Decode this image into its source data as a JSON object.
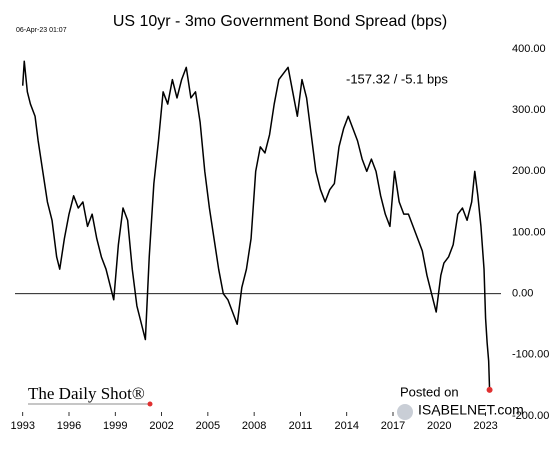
{
  "chart_data": {
    "type": "line",
    "title": "US 10yr - 3mo Government Bond Spread (bps)",
    "timestamp": "06-Apr-23 01:07",
    "annotation": "-157.32  /  -5.1 bps",
    "source": "The Daily Shot®",
    "watermark_top": "Posted on",
    "watermark_bottom": "ISABELNET.com",
    "color": "#000000",
    "end_marker_color": "#e03030",
    "grid": false,
    "xlim": [
      1992.5,
      2024
    ],
    "xticks": [
      1993,
      1996,
      1999,
      2002,
      2005,
      2008,
      2011,
      2014,
      2017,
      2020,
      2023
    ],
    "ylim": [
      -200,
      400
    ],
    "yticks": [
      {
        "value": 400,
        "label": "400.00"
      },
      {
        "value": 300,
        "label": "300.00"
      },
      {
        "value": 200,
        "label": "200.00"
      },
      {
        "value": 100,
        "label": "100.00"
      },
      {
        "value": 0,
        "label": "0.00"
      },
      {
        "value": -100,
        "label": "-100.00"
      },
      {
        "value": -200,
        "label": "-200.00"
      }
    ],
    "x": [
      1993,
      1993.1,
      1993.3,
      1993.5,
      1993.8,
      1994,
      1994.3,
      1994.6,
      1994.9,
      1995.2,
      1995.4,
      1995.7,
      1996,
      1996.3,
      1996.6,
      1996.9,
      1997.2,
      1997.5,
      1997.8,
      1998.1,
      1998.4,
      1998.7,
      1998.9,
      1999.2,
      1999.5,
      1999.8,
      2000.1,
      2000.4,
      2000.7,
      2000.95,
      2001.2,
      2001.5,
      2001.8,
      2002.1,
      2002.4,
      2002.7,
      2003,
      2003.3,
      2003.6,
      2003.9,
      2004.2,
      2004.5,
      2004.8,
      2005.1,
      2005.4,
      2005.7,
      2006,
      2006.3,
      2006.6,
      2006.9,
      2007.2,
      2007.5,
      2007.8,
      2008.1,
      2008.4,
      2008.7,
      2009,
      2009.3,
      2009.6,
      2009.9,
      2010.2,
      2010.5,
      2010.8,
      2011.1,
      2011.4,
      2011.7,
      2012,
      2012.3,
      2012.6,
      2012.9,
      2013.2,
      2013.5,
      2013.8,
      2014.1,
      2014.4,
      2014.7,
      2015,
      2015.3,
      2015.6,
      2015.9,
      2016.2,
      2016.5,
      2016.8,
      2017.1,
      2017.4,
      2017.7,
      2018,
      2018.3,
      2018.6,
      2018.9,
      2019.2,
      2019.5,
      2019.8,
      2020.1,
      2020.3,
      2020.6,
      2020.9,
      2021.2,
      2021.5,
      2021.8,
      2022.1,
      2022.3,
      2022.5,
      2022.7,
      2022.9,
      2023,
      2023.1,
      2023.2,
      2023.26
    ],
    "values": [
      340,
      380,
      330,
      310,
      290,
      250,
      200,
      150,
      120,
      60,
      40,
      90,
      130,
      160,
      140,
      150,
      110,
      130,
      90,
      60,
      40,
      10,
      -10,
      80,
      140,
      120,
      40,
      -20,
      -50,
      -75,
      60,
      180,
      250,
      330,
      310,
      350,
      320,
      350,
      370,
      320,
      330,
      280,
      200,
      140,
      90,
      40,
      0,
      -10,
      -30,
      -50,
      10,
      40,
      90,
      200,
      240,
      230,
      260,
      310,
      350,
      360,
      370,
      330,
      290,
      350,
      320,
      260,
      200,
      170,
      150,
      170,
      180,
      240,
      270,
      290,
      270,
      250,
      220,
      200,
      220,
      200,
      160,
      130,
      110,
      200,
      150,
      130,
      130,
      110,
      90,
      70,
      30,
      0,
      -30,
      30,
      50,
      60,
      80,
      130,
      140,
      120,
      150,
      200,
      160,
      110,
      40,
      -40,
      -80,
      -110,
      -157.32
    ]
  }
}
